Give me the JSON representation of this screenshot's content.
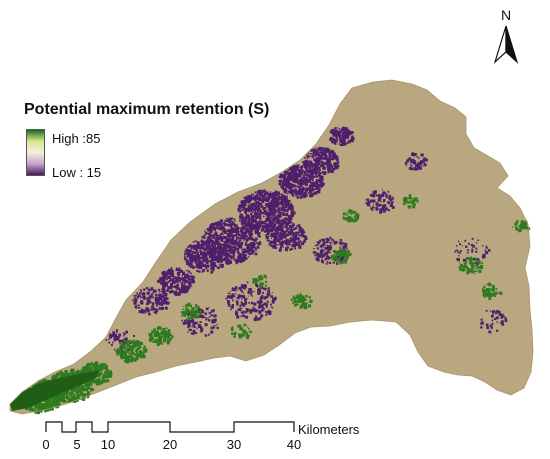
{
  "map": {
    "legend": {
      "title": "Potential maximum retention (S)",
      "high_label": "High :85",
      "low_label": "Low : 15",
      "high_value": 85,
      "low_value": 15,
      "ramp_colors": [
        "#1b6b1b",
        "#d8e88a",
        "#f3eee0",
        "#c4a5c9",
        "#4b1a5c"
      ]
    },
    "north_arrow": {
      "label": "N"
    },
    "scale_bar": {
      "unit": "Kilometers",
      "ticks": [
        "0",
        "5",
        "10",
        "20",
        "30",
        "40"
      ]
    },
    "colors": {
      "basin_fill": "#b9a67c",
      "high_class": "#2e7a1e",
      "low_class": "#4f1f6b"
    }
  }
}
